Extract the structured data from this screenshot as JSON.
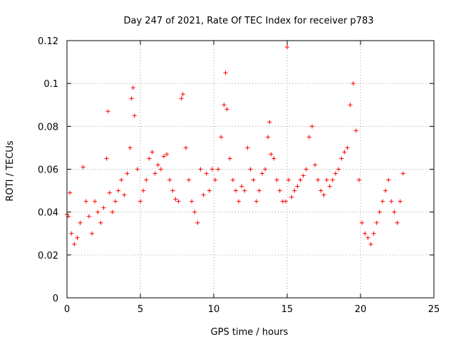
{
  "chart_data": {
    "type": "scatter",
    "title": "Day 247 of 2021, Rate Of TEC Index for receiver p783",
    "xlabel": "GPS time / hours",
    "ylabel": "ROTI / TECUs",
    "xlim": [
      0,
      25
    ],
    "ylim": [
      0,
      0.12
    ],
    "xticks": [
      0,
      5,
      10,
      15,
      20,
      25
    ],
    "xtick_labels": [
      "0",
      "5",
      "10",
      "15",
      "20",
      "25"
    ],
    "yticks": [
      0,
      0.02,
      0.04,
      0.06,
      0.08,
      0.1,
      0.12
    ],
    "ytick_labels": [
      "0",
      "0.02",
      "0.04",
      "0.06",
      "0.08",
      "0.1",
      "0.12"
    ],
    "grid": true,
    "marker": "+",
    "color": "#ff0000",
    "series": [
      {
        "x": [
          0.0,
          0.1,
          0.2,
          0.3,
          0.5,
          0.7,
          0.9,
          1.1,
          1.3,
          1.5,
          1.7,
          1.9,
          2.1,
          2.3,
          2.5,
          2.7,
          2.8,
          2.9,
          3.1,
          3.3,
          3.5,
          3.7,
          3.9,
          4.1,
          4.3,
          4.4,
          4.5,
          4.6,
          4.8,
          5.0,
          5.2,
          5.4,
          5.6,
          5.8,
          6.0,
          6.2,
          6.4,
          6.6,
          6.8,
          7.0,
          7.2,
          7.4,
          7.6,
          7.8,
          7.9,
          8.1,
          8.3,
          8.5,
          8.7,
          8.9,
          9.1,
          9.3,
          9.5,
          9.7,
          9.9,
          10.1,
          10.3,
          10.5,
          10.7,
          10.8,
          10.9,
          11.1,
          11.3,
          11.5,
          11.7,
          11.9,
          12.1,
          12.3,
          12.5,
          12.7,
          12.9,
          13.1,
          13.3,
          13.5,
          13.7,
          13.8,
          13.9,
          14.1,
          14.3,
          14.5,
          14.7,
          14.9,
          15.0,
          15.1,
          15.3,
          15.5,
          15.7,
          15.9,
          16.1,
          16.3,
          16.5,
          16.7,
          16.9,
          17.1,
          17.3,
          17.5,
          17.7,
          17.9,
          18.1,
          18.3,
          18.5,
          18.7,
          18.9,
          19.1,
          19.3,
          19.5,
          19.7,
          19.9,
          20.1,
          20.3,
          20.5,
          20.7,
          20.9,
          21.1,
          21.3,
          21.5,
          21.7,
          21.9,
          22.1,
          22.3,
          22.5,
          22.7,
          22.9
        ],
        "y": [
          0.039,
          0.038,
          0.049,
          0.03,
          0.025,
          0.028,
          0.035,
          0.061,
          0.045,
          0.038,
          0.03,
          0.045,
          0.04,
          0.035,
          0.042,
          0.065,
          0.087,
          0.049,
          0.04,
          0.045,
          0.05,
          0.055,
          0.048,
          0.058,
          0.07,
          0.093,
          0.098,
          0.085,
          0.06,
          0.045,
          0.05,
          0.055,
          0.065,
          0.068,
          0.058,
          0.062,
          0.06,
          0.066,
          0.067,
          0.055,
          0.05,
          0.046,
          0.045,
          0.093,
          0.095,
          0.07,
          0.055,
          0.045,
          0.04,
          0.035,
          0.06,
          0.048,
          0.058,
          0.05,
          0.06,
          0.055,
          0.06,
          0.075,
          0.09,
          0.105,
          0.088,
          0.065,
          0.055,
          0.05,
          0.045,
          0.052,
          0.05,
          0.07,
          0.06,
          0.055,
          0.045,
          0.05,
          0.058,
          0.06,
          0.075,
          0.082,
          0.067,
          0.065,
          0.055,
          0.05,
          0.045,
          0.045,
          0.117,
          0.055,
          0.047,
          0.05,
          0.052,
          0.055,
          0.057,
          0.06,
          0.075,
          0.08,
          0.062,
          0.055,
          0.05,
          0.048,
          0.055,
          0.052,
          0.055,
          0.058,
          0.06,
          0.065,
          0.068,
          0.07,
          0.09,
          0.1,
          0.078,
          0.055,
          0.035,
          0.03,
          0.028,
          0.025,
          0.03,
          0.035,
          0.04,
          0.045,
          0.05,
          0.055,
          0.045,
          0.04,
          0.035,
          0.045,
          0.058
        ]
      }
    ]
  }
}
